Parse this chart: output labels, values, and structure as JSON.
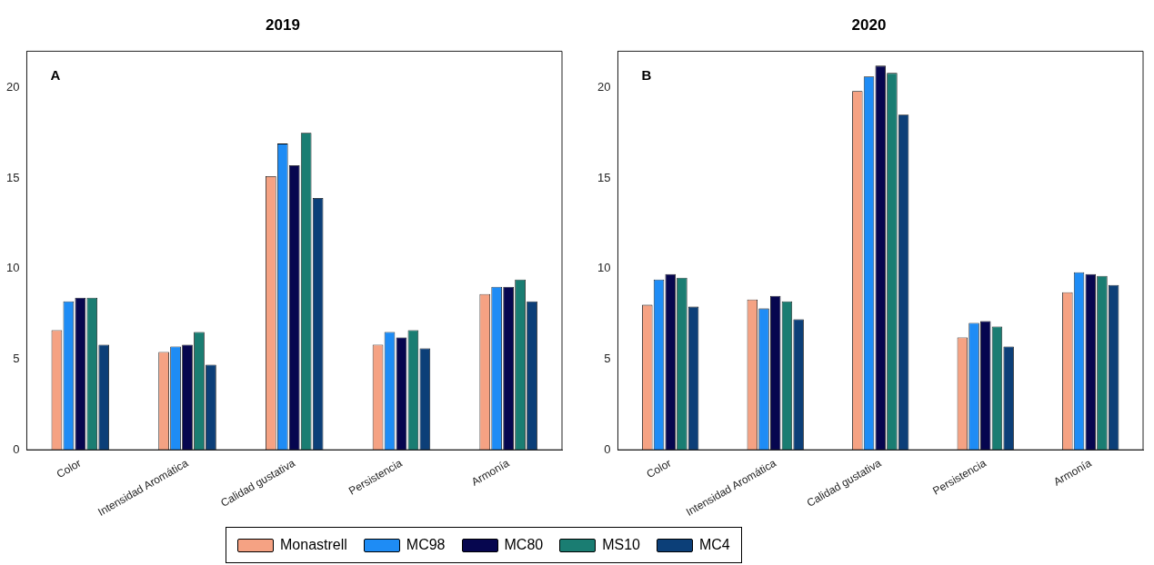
{
  "chart_data": [
    {
      "type": "bar",
      "title": "2019",
      "annotations": [
        "A"
      ],
      "categories": [
        "Color",
        "Intensidad Aromática",
        "Calidad gustativa",
        "Persistencia",
        "Armonía"
      ],
      "series": [
        {
          "name": "Monastrell",
          "color": "#f5a283",
          "values": [
            6.6,
            5.4,
            15.1,
            5.8,
            8.6
          ]
        },
        {
          "name": "MC98",
          "color": "#1e8cf5",
          "values": [
            8.2,
            5.7,
            16.9,
            6.5,
            9.0
          ]
        },
        {
          "name": "MC80",
          "color": "#06064f",
          "values": [
            8.4,
            5.8,
            15.7,
            6.2,
            9.0
          ]
        },
        {
          "name": "MS10",
          "color": "#1a7d72",
          "values": [
            8.4,
            6.5,
            17.5,
            6.6,
            9.4
          ]
        },
        {
          "name": "MC4",
          "color": "#0c3f78",
          "values": [
            5.8,
            4.7,
            13.9,
            5.6,
            8.2
          ]
        }
      ],
      "ylim": [
        0,
        22
      ],
      "yticks": [
        0,
        5,
        10,
        15,
        20
      ],
      "grid": false,
      "legend": "bottom"
    },
    {
      "type": "bar",
      "title": "2020",
      "annotations": [
        "B"
      ],
      "categories": [
        "Color",
        "Intensidad Aromática",
        "Calidad gustativa",
        "Persistencia",
        "Armonía"
      ],
      "series": [
        {
          "color": "#f5a283",
          "values": [
            8.0,
            8.3,
            19.8,
            6.2,
            8.7
          ]
        },
        {
          "color": "#1e8cf5",
          "values": [
            9.4,
            7.8,
            20.6,
            7.0,
            9.8
          ]
        },
        {
          "color": "#06064f",
          "values": [
            9.7,
            8.5,
            21.2,
            7.1,
            9.7
          ]
        },
        {
          "color": "#1a7d72",
          "values": [
            9.5,
            8.2,
            20.8,
            6.8,
            9.6
          ]
        },
        {
          "color": "#0c3f78",
          "values": [
            7.9,
            7.2,
            18.5,
            5.7,
            9.1
          ]
        }
      ],
      "ylim": [
        0,
        22
      ],
      "yticks": [
        0,
        5,
        10,
        15,
        20
      ],
      "grid": false
    }
  ]
}
